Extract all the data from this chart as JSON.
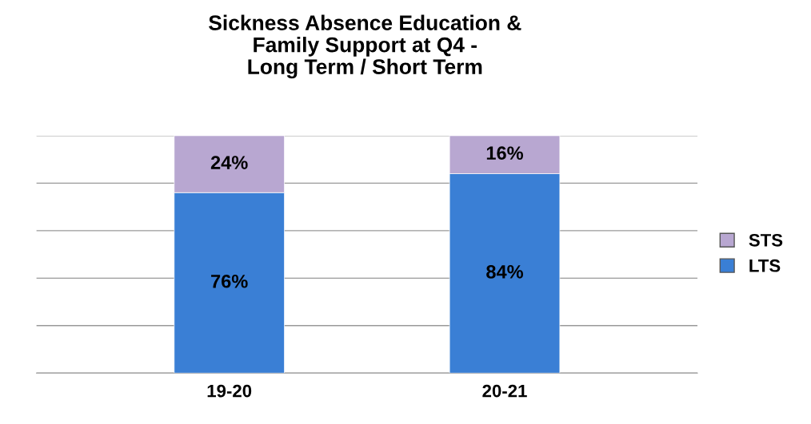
{
  "chart_data": {
    "type": "bar",
    "title": "Sickness Absence Education &\nFamily Support at Q4 -\nLong Term / Short Term",
    "categories": [
      "19-20",
      "20-21"
    ],
    "stacked": true,
    "series": [
      {
        "name": "LTS",
        "color": "#3a7fd5",
        "values": [
          76,
          84
        ],
        "value_labels": [
          "76%",
          "84%"
        ]
      },
      {
        "name": "STS",
        "color": "#b8a7d1",
        "values": [
          24,
          16
        ],
        "value_labels": [
          "24%",
          "16%"
        ]
      }
    ],
    "ylim": [
      0,
      100
    ],
    "yticks": [
      {
        "value": 0,
        "label": null
      },
      {
        "value": 20,
        "label": null
      },
      {
        "value": 40,
        "label": null
      },
      {
        "value": 60,
        "label": null
      },
      {
        "value": 80,
        "label": null
      },
      {
        "value": 100,
        "label": null
      }
    ],
    "grid": "y",
    "legend": "right",
    "tick_labels": "x"
  }
}
